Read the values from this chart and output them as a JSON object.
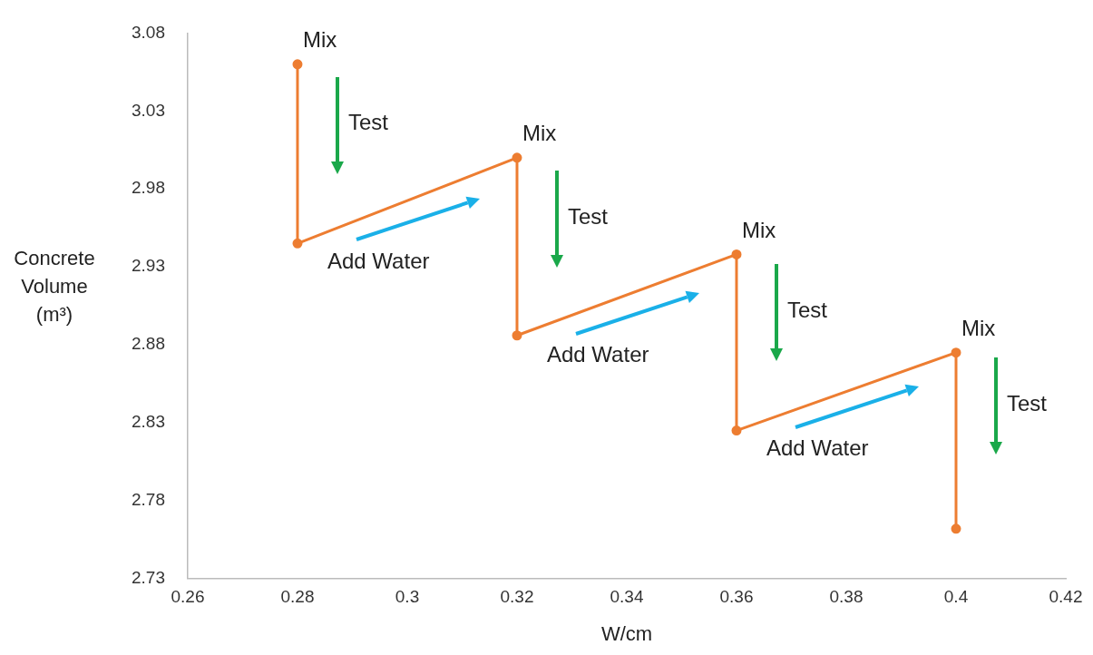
{
  "chart_data": {
    "type": "line",
    "xlabel": "W/cm",
    "ylabel": "Concrete Volume (m³)",
    "x": [
      0.28,
      0.28,
      0.32,
      0.32,
      0.36,
      0.36,
      0.4,
      0.4
    ],
    "series": [
      {
        "color": "#ed7d31",
        "values": [
          3.06,
          2.945,
          3.0,
          2.886,
          2.938,
          2.825,
          2.875,
          2.762
        ]
      }
    ],
    "xlim": [
      0.26,
      0.42
    ],
    "xticks": [
      0.26,
      0.28,
      0.3,
      0.32,
      0.34,
      0.36,
      0.38,
      0.4,
      0.42
    ],
    "ylim": [
      2.73,
      3.08
    ],
    "yticks": [
      2.73,
      2.78,
      2.83,
      2.88,
      2.93,
      2.98,
      3.03,
      3.08
    ],
    "grid": false,
    "legend": false,
    "marker": "circle",
    "line_style": "solid",
    "annotations": [
      {
        "text": "Mix",
        "x": 0.28,
        "y": 3.06
      },
      {
        "text": "Test",
        "x": 0.28,
        "y": 3.0
      },
      {
        "text": "Add Water",
        "x": 0.3,
        "y": 2.97
      },
      {
        "text": "Mix",
        "x": 0.32,
        "y": 3.0
      },
      {
        "text": "Test",
        "x": 0.32,
        "y": 2.94
      },
      {
        "text": "Add Water",
        "x": 0.34,
        "y": 2.91
      },
      {
        "text": "Mix",
        "x": 0.36,
        "y": 2.938
      },
      {
        "text": "Test",
        "x": 0.36,
        "y": 2.88
      },
      {
        "text": "Add Water",
        "x": 0.38,
        "y": 2.85
      },
      {
        "text": "Mix",
        "x": 0.4,
        "y": 2.875
      },
      {
        "text": "Test",
        "x": 0.4,
        "y": 2.82
      }
    ]
  }
}
